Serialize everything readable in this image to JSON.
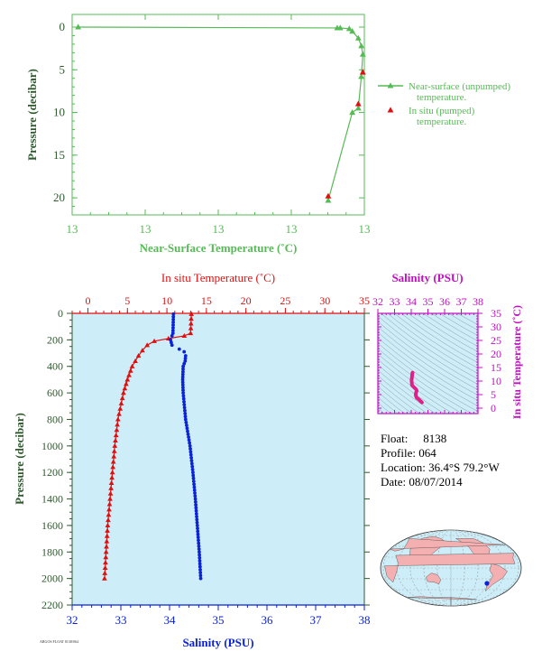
{
  "colors": {
    "surface_green": "#55bb55",
    "axis_dark_green": "#2e5a2e",
    "insitu_red": "#e01010",
    "salinity_blue": "#0a22d8",
    "salinity_purple": "#c010c0",
    "panel_bg": "#cdeef8",
    "grid_gray": "#8a9aa0",
    "land_pink": "#f4b0b0"
  },
  "meta": {
    "float_label": "Float:",
    "float_value": "8138",
    "profile_label": "Profile:",
    "profile_value": "064",
    "location_label": "Location:",
    "location_value": "36.4°S  79.2°W",
    "date_label": "Date:",
    "date_value": "08/07/2014",
    "tiny_text": "ARGOS FLOAT 8138/064"
  },
  "chart_data": [
    {
      "id": "near-surface",
      "type": "line",
      "xlabel": "Near-Surface Temperature (˚C)",
      "ylabel": "Pressure (decibar)",
      "x_tick_labels": [
        "13",
        "13",
        "13",
        "13",
        "13"
      ],
      "y_ticks": [
        0,
        5,
        10,
        15,
        20
      ],
      "ylim": [
        0,
        22
      ],
      "y_inverted": true,
      "grid": false,
      "legend_position": "right",
      "series": [
        {
          "name": "Near-surface (unpumped) temperature.",
          "marker": "triangle",
          "x": [
            13.02,
            13.88,
            13.89,
            13.92,
            13.93,
            13.95,
            13.96,
            13.965,
            13.96,
            13.95,
            13.93,
            13.85
          ],
          "y": [
            0.0,
            0.1,
            0.1,
            0.2,
            0.5,
            1.3,
            2.2,
            3.2,
            5.8,
            9.5,
            10.0,
            20.3
          ]
        },
        {
          "name": "In situ (pumped) temperature.",
          "marker": "triangle",
          "x": [
            13.965,
            13.95,
            13.85
          ],
          "y": [
            5.3,
            9.0,
            19.8
          ]
        }
      ]
    },
    {
      "id": "profile",
      "type": "scatter",
      "top_xlabel": "In situ Temperature (˚C)",
      "bottom_xlabel": "Salinity (PSU)",
      "ylabel": "Pressure (decibar)",
      "temp_ticks": [
        0,
        5,
        10,
        15,
        20,
        25,
        30,
        35
      ],
      "temp_lim": [
        -2,
        35
      ],
      "sal_ticks": [
        32,
        33,
        34,
        35,
        36,
        37,
        38
      ],
      "sal_lim": [
        32,
        38
      ],
      "p_ticks": [
        0,
        200,
        400,
        600,
        800,
        1000,
        1200,
        1400,
        1600,
        1800,
        2000,
        2200
      ],
      "p_lim": [
        0,
        2200
      ],
      "y_inverted": true,
      "grid": false,
      "temperature": {
        "p": [
          5,
          150,
          170,
          190,
          210,
          240,
          280,
          320,
          360,
          400,
          500,
          600,
          800,
          1000,
          1200,
          1400,
          1600,
          1800,
          2000
        ],
        "t": [
          13.1,
          13.0,
          12.2,
          10.2,
          8.4,
          7.5,
          6.9,
          6.4,
          6.0,
          5.6,
          5.0,
          4.5,
          3.8,
          3.4,
          3.1,
          2.8,
          2.5,
          2.3,
          2.1
        ]
      },
      "salinity": {
        "p": [
          5,
          150,
          170,
          200,
          240,
          270,
          290,
          320,
          360,
          400,
          500,
          600,
          800,
          1000,
          1200,
          1400,
          1600,
          1800,
          2000
        ],
        "s": [
          34.08,
          34.07,
          34.05,
          34.02,
          34.05,
          34.2,
          34.3,
          34.33,
          34.32,
          34.28,
          34.27,
          34.28,
          34.33,
          34.42,
          34.48,
          34.53,
          34.57,
          34.61,
          34.64
        ]
      }
    },
    {
      "id": "ts-diagram",
      "type": "line",
      "top_xlabel": "Salinity (PSU)",
      "right_ylabel": "In situ Temperature (˚C)",
      "sal_ticks": [
        32,
        33,
        34,
        35,
        36,
        37,
        38
      ],
      "sal_lim": [
        32,
        38
      ],
      "temp_ticks": [
        0,
        5,
        10,
        15,
        20,
        25,
        30,
        35
      ],
      "temp_lim": [
        -2,
        35
      ],
      "grid": false,
      "trace": {
        "s": [
          34.64,
          34.57,
          34.48,
          34.42,
          34.33,
          34.28,
          34.27,
          34.28,
          34.33,
          34.3,
          34.2,
          34.05,
          34.02,
          34.07,
          34.08
        ],
        "t": [
          2.1,
          2.5,
          3.1,
          3.4,
          3.8,
          4.5,
          5.0,
          5.6,
          6.4,
          6.9,
          7.5,
          8.4,
          10.2,
          13.0,
          13.1
        ]
      }
    },
    {
      "id": "world-map",
      "type": "map",
      "float_marker": {
        "lat": -36.4,
        "lon": -79.2
      }
    }
  ]
}
